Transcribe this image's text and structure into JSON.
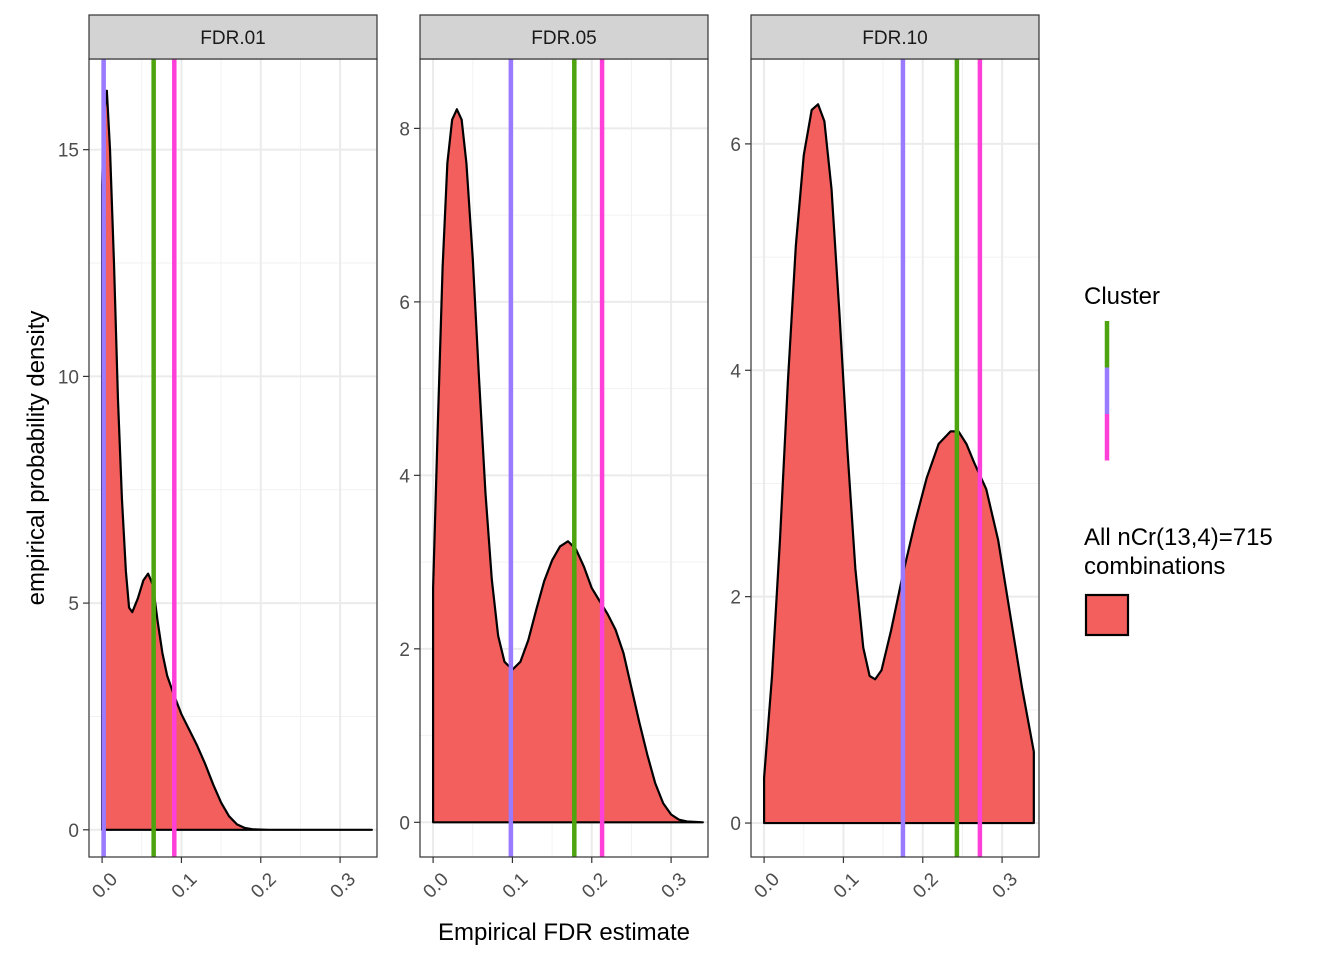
{
  "chart_data": {
    "type": "area",
    "xlabel": "Empirical FDR estimate",
    "ylabel": "empirical probability density",
    "x_ticks": [
      0.0,
      0.1,
      0.2,
      0.3
    ],
    "x_tick_labels": [
      "0.0",
      "0.1",
      "0.2",
      "0.3"
    ],
    "xlim": [
      -0.0165,
      0.3465
    ],
    "grid": true,
    "fill_color": "#F25F5C",
    "outline_color": "#000000",
    "strip_fill": "#D3D3D3",
    "cluster_colors": [
      "#4DA40E",
      "#9A7AFF",
      "#FF40D8"
    ],
    "legend": {
      "position": "right",
      "cluster_title": "Cluster",
      "combo_title": [
        "All nCr(13,4)=715",
        "combinations"
      ]
    },
    "panels": [
      {
        "strip": "FDR.01",
        "ylim": [
          -0.6,
          17.0
        ],
        "y_ticks": [
          0,
          5,
          10,
          15
        ],
        "y_tick_labels": [
          "0",
          "5",
          "10",
          "15"
        ],
        "cluster_lines": [
          0.065,
          0.002,
          0.091
        ],
        "density": [
          [
            0.0,
            14.2
          ],
          [
            0.0025,
            15.8
          ],
          [
            0.006,
            16.3
          ],
          [
            0.01,
            15.0
          ],
          [
            0.015,
            12.5
          ],
          [
            0.02,
            9.5
          ],
          [
            0.025,
            7.3
          ],
          [
            0.03,
            5.7
          ],
          [
            0.034,
            4.9
          ],
          [
            0.038,
            4.8
          ],
          [
            0.045,
            5.1
          ],
          [
            0.052,
            5.5
          ],
          [
            0.058,
            5.65
          ],
          [
            0.064,
            5.4
          ],
          [
            0.07,
            4.6
          ],
          [
            0.076,
            3.9
          ],
          [
            0.082,
            3.4
          ],
          [
            0.09,
            3.0
          ],
          [
            0.1,
            2.55
          ],
          [
            0.11,
            2.2
          ],
          [
            0.12,
            1.85
          ],
          [
            0.13,
            1.45
          ],
          [
            0.14,
            1.0
          ],
          [
            0.15,
            0.6
          ],
          [
            0.16,
            0.3
          ],
          [
            0.17,
            0.12
          ],
          [
            0.18,
            0.04
          ],
          [
            0.19,
            0.01
          ],
          [
            0.21,
            0.0
          ],
          [
            0.34,
            0.0
          ]
        ]
      },
      {
        "strip": "FDR.05",
        "ylim": [
          -0.4,
          8.8
        ],
        "y_ticks": [
          0,
          2,
          4,
          6,
          8
        ],
        "y_tick_labels": [
          "0",
          "2",
          "4",
          "6",
          "8"
        ],
        "cluster_lines": [
          0.178,
          0.098,
          0.213
        ],
        "density": [
          [
            0.0,
            2.7
          ],
          [
            0.006,
            4.6
          ],
          [
            0.012,
            6.4
          ],
          [
            0.018,
            7.6
          ],
          [
            0.024,
            8.1
          ],
          [
            0.03,
            8.22
          ],
          [
            0.036,
            8.1
          ],
          [
            0.042,
            7.6
          ],
          [
            0.05,
            6.5
          ],
          [
            0.058,
            5.1
          ],
          [
            0.066,
            3.8
          ],
          [
            0.074,
            2.8
          ],
          [
            0.082,
            2.15
          ],
          [
            0.09,
            1.85
          ],
          [
            0.1,
            1.76
          ],
          [
            0.11,
            1.85
          ],
          [
            0.12,
            2.1
          ],
          [
            0.13,
            2.45
          ],
          [
            0.14,
            2.78
          ],
          [
            0.15,
            3.02
          ],
          [
            0.16,
            3.18
          ],
          [
            0.17,
            3.24
          ],
          [
            0.18,
            3.15
          ],
          [
            0.19,
            2.95
          ],
          [
            0.2,
            2.7
          ],
          [
            0.21,
            2.55
          ],
          [
            0.22,
            2.4
          ],
          [
            0.23,
            2.22
          ],
          [
            0.24,
            1.95
          ],
          [
            0.25,
            1.55
          ],
          [
            0.26,
            1.15
          ],
          [
            0.27,
            0.78
          ],
          [
            0.28,
            0.45
          ],
          [
            0.29,
            0.22
          ],
          [
            0.3,
            0.09
          ],
          [
            0.31,
            0.03
          ],
          [
            0.32,
            0.01
          ],
          [
            0.34,
            0.0
          ]
        ]
      },
      {
        "strip": "FDR.10",
        "ylim": [
          -0.3,
          6.75
        ],
        "y_ticks": [
          0,
          2,
          4,
          6
        ],
        "y_tick_labels": [
          "0",
          "2",
          "4",
          "6"
        ],
        "cluster_lines": [
          0.243,
          0.175,
          0.272
        ],
        "density": [
          [
            0.0,
            0.4
          ],
          [
            0.01,
            1.3
          ],
          [
            0.02,
            2.5
          ],
          [
            0.03,
            3.9
          ],
          [
            0.04,
            5.1
          ],
          [
            0.05,
            5.9
          ],
          [
            0.06,
            6.3
          ],
          [
            0.068,
            6.35
          ],
          [
            0.076,
            6.2
          ],
          [
            0.085,
            5.6
          ],
          [
            0.095,
            4.5
          ],
          [
            0.105,
            3.3
          ],
          [
            0.115,
            2.25
          ],
          [
            0.125,
            1.55
          ],
          [
            0.133,
            1.3
          ],
          [
            0.14,
            1.27
          ],
          [
            0.148,
            1.35
          ],
          [
            0.16,
            1.7
          ],
          [
            0.175,
            2.2
          ],
          [
            0.19,
            2.65
          ],
          [
            0.205,
            3.05
          ],
          [
            0.22,
            3.35
          ],
          [
            0.235,
            3.46
          ],
          [
            0.245,
            3.46
          ],
          [
            0.255,
            3.35
          ],
          [
            0.265,
            3.18
          ],
          [
            0.28,
            2.95
          ],
          [
            0.295,
            2.5
          ],
          [
            0.31,
            1.85
          ],
          [
            0.325,
            1.2
          ],
          [
            0.34,
            0.63
          ],
          [
            0.34,
            0.0
          ]
        ]
      }
    ]
  }
}
